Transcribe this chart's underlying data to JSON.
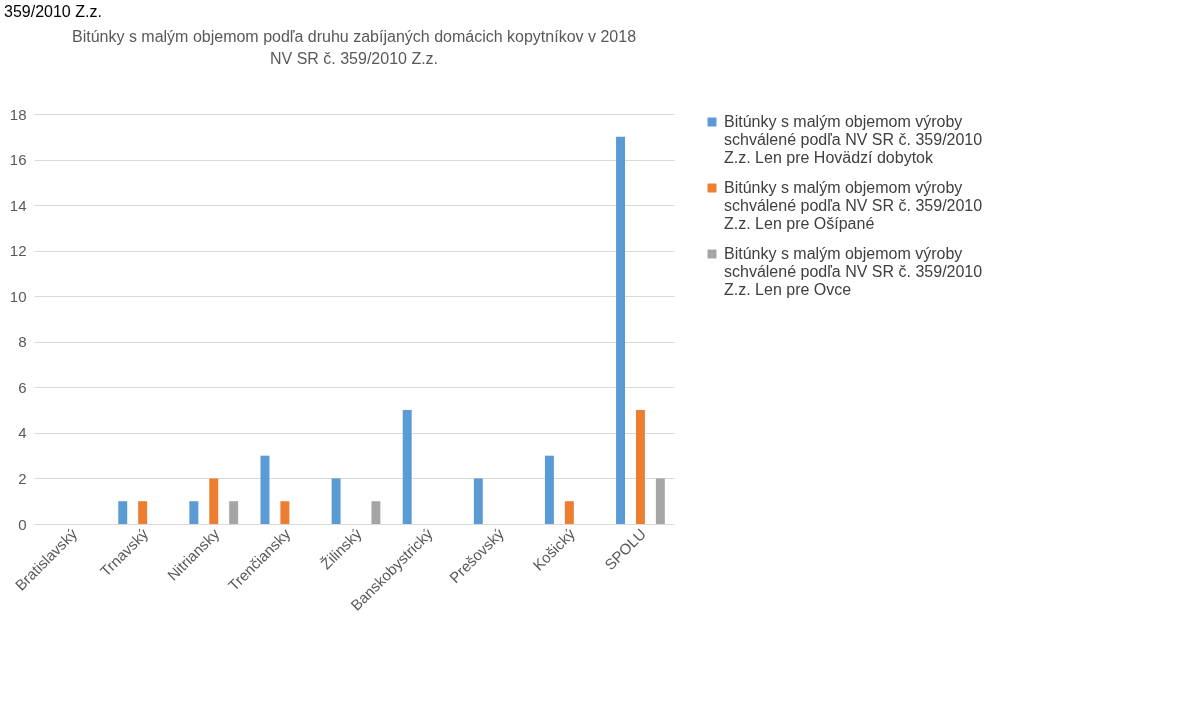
{
  "chart_data": {
    "type": "bar",
    "title": "Bitúnky s malým objemom  podľa druhu zabíjaných domácich kopytníkov v 2018",
    "subtitle": "NV SR č. 359/2010 Z.z.",
    "annotations": [
      "359/2010 Z.z."
    ],
    "categories": [
      "Bratislavský",
      "Trnavský",
      "Nitriansky",
      "Trenčiansky",
      "Žilinský",
      "Banskobystrický",
      "Prešovský",
      "Košický",
      "SPOLU"
    ],
    "series": [
      {
        "name": "Bitúnky s malým objemom výroby schválené podľa NV SR č. 359/2010 Z.z.  Len pre Hovädzí dobytok",
        "color": "#5b9bd5",
        "values": [
          0,
          1,
          1,
          3,
          2,
          5,
          2,
          3,
          17
        ]
      },
      {
        "name": "Bitúnky s malým objemom výroby schválené podľa NV SR č. 359/2010 Z.z.   Len pre Ošípané",
        "color": "#ed7d31",
        "values": [
          0,
          1,
          2,
          1,
          0,
          0,
          0,
          1,
          5
        ]
      },
      {
        "name": "Bitúnky s malým objemom výroby schválené podľa NV SR č. 359/2010 Z.z.   Len pre Ovce",
        "color": "#a5a5a5",
        "values": [
          0,
          0,
          1,
          0,
          1,
          0,
          0,
          0,
          2
        ]
      }
    ],
    "ylim": [
      0,
      18
    ],
    "yticks": [
      0,
      2,
      4,
      6,
      8,
      10,
      12,
      14,
      16,
      18
    ],
    "grid": "y",
    "legend": "right"
  }
}
